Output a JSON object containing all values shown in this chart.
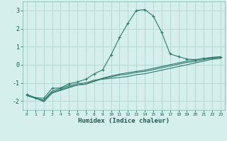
{
  "xlabel": "Humidex (Indice chaleur)",
  "bg_color": "#d4efec",
  "grid_color": "#b8d8d4",
  "line_color": "#2a7a6a",
  "xlim": [
    -0.5,
    23.5
  ],
  "ylim": [
    -2.5,
    3.5
  ],
  "yticks": [
    -2,
    -1,
    0,
    1,
    2,
    3
  ],
  "xticks": [
    0,
    1,
    2,
    3,
    4,
    5,
    6,
    7,
    8,
    9,
    10,
    11,
    12,
    13,
    14,
    15,
    16,
    17,
    18,
    19,
    20,
    21,
    22,
    23
  ],
  "series_plain": [
    {
      "x": [
        0,
        1,
        2,
        3,
        4,
        5,
        6,
        7,
        8,
        9,
        10,
        11,
        12,
        13,
        14,
        15,
        16,
        17,
        18,
        19,
        20,
        21,
        22,
        23
      ],
      "y": [
        -1.7,
        -1.85,
        -1.95,
        -1.45,
        -1.3,
        -1.15,
        -1.05,
        -1.0,
        -0.85,
        -0.8,
        -0.75,
        -0.7,
        -0.65,
        -0.55,
        -0.5,
        -0.4,
        -0.3,
        -0.2,
        -0.1,
        0.0,
        0.1,
        0.2,
        0.3,
        0.35
      ]
    },
    {
      "x": [
        0,
        1,
        2,
        3,
        4,
        5,
        6,
        7,
        8,
        9,
        10,
        11,
        12,
        13,
        14,
        15,
        16,
        17,
        18,
        19,
        20,
        21,
        22,
        23
      ],
      "y": [
        -1.7,
        -1.85,
        -1.98,
        -1.52,
        -1.37,
        -1.22,
        -1.12,
        -1.07,
        -0.92,
        -0.77,
        -0.67,
        -0.57,
        -0.52,
        -0.42,
        -0.37,
        -0.27,
        -0.17,
        -0.07,
        0.03,
        0.13,
        0.18,
        0.28,
        0.36,
        0.4
      ]
    },
    {
      "x": [
        0,
        1,
        2,
        3,
        4,
        5,
        6,
        7,
        8,
        9,
        10,
        11,
        12,
        13,
        14,
        15,
        16,
        17,
        18,
        19,
        20,
        21,
        22,
        23
      ],
      "y": [
        -1.65,
        -1.82,
        -2.05,
        -1.57,
        -1.42,
        -1.27,
        -1.12,
        -1.07,
        -0.9,
        -0.74,
        -0.62,
        -0.52,
        -0.44,
        -0.37,
        -0.3,
        -0.2,
        -0.1,
        0.0,
        0.1,
        0.2,
        0.26,
        0.34,
        0.4,
        0.44
      ]
    }
  ],
  "series_marker": {
    "x": [
      0,
      1,
      2,
      3,
      4,
      5,
      6,
      7,
      8,
      9,
      10,
      11,
      12,
      13,
      14,
      15,
      16,
      17,
      18,
      19,
      20,
      21,
      22,
      23
    ],
    "y": [
      -1.65,
      -1.82,
      -1.85,
      -1.3,
      -1.28,
      -1.05,
      -0.95,
      -0.8,
      -0.5,
      -0.28,
      0.55,
      1.5,
      2.3,
      3.0,
      3.05,
      2.7,
      1.8,
      0.6,
      0.45,
      0.32,
      0.28,
      0.35,
      0.4,
      0.44
    ]
  }
}
